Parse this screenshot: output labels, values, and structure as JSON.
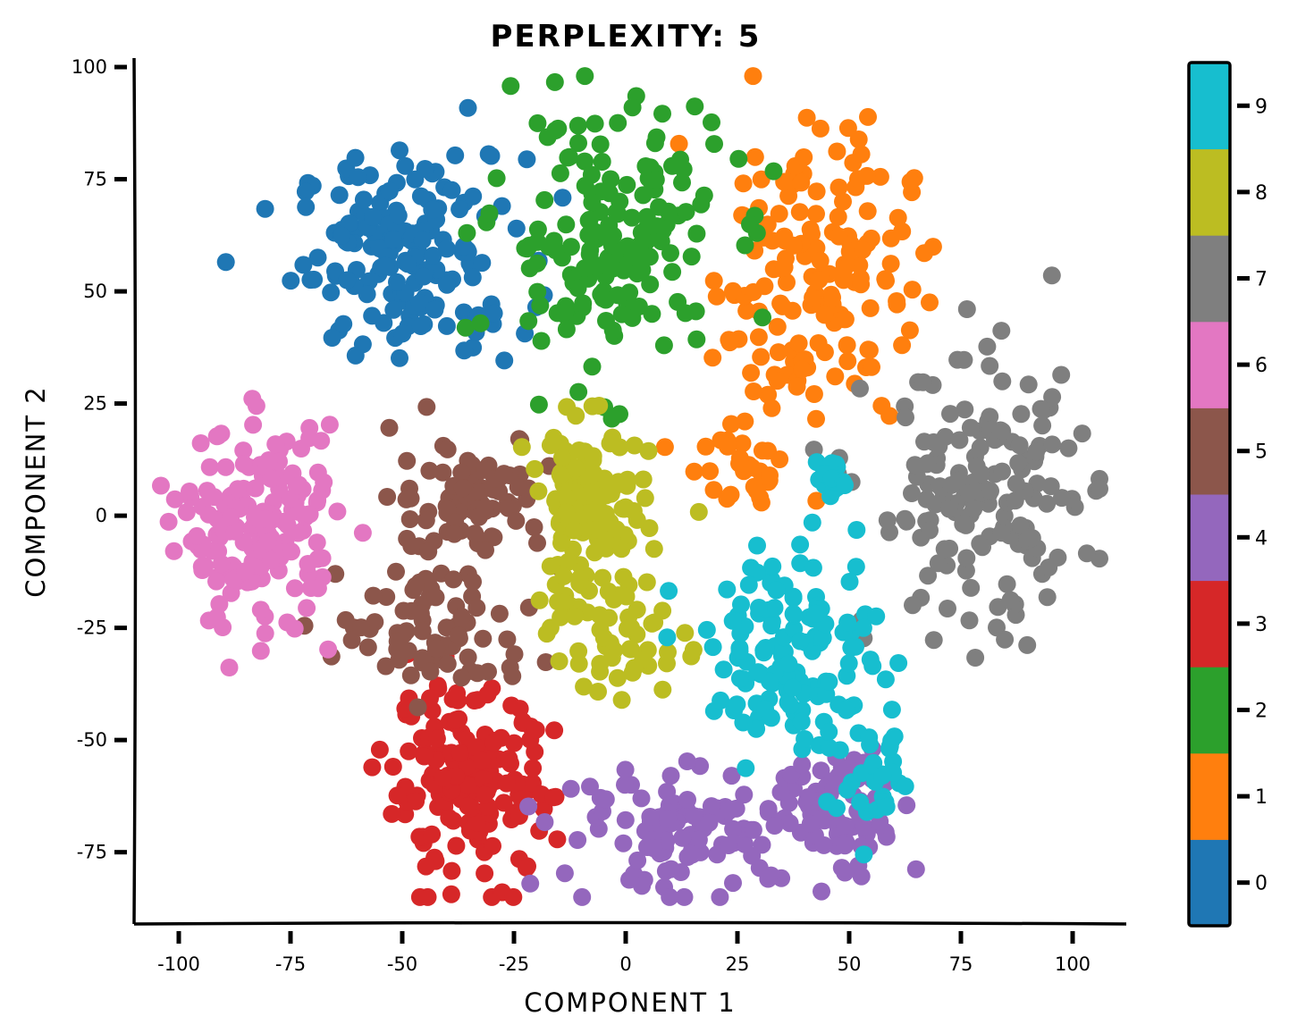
{
  "chart_data": {
    "type": "scatter",
    "title": "PERPLEXITY: 5",
    "xlabel": "COMPONENT 1",
    "ylabel": "COMPONENT 2",
    "xlim": [
      -110,
      112
    ],
    "ylim": [
      -91,
      102
    ],
    "xticks": [
      -100,
      -75,
      -50,
      -25,
      0,
      25,
      50,
      75,
      100
    ],
    "yticks": [
      -75,
      -50,
      -25,
      0,
      25,
      50,
      75,
      100
    ],
    "grid": false,
    "colorbar": {
      "ticks": [
        "0",
        "1",
        "2",
        "3",
        "4",
        "5",
        "6",
        "7",
        "8",
        "9"
      ],
      "colors": [
        "#1f77b4",
        "#ff7f0e",
        "#2ca02c",
        "#d62728",
        "#9467bd",
        "#8c564b",
        "#e377c2",
        "#7f7f7f",
        "#bcbd22",
        "#17becf"
      ]
    },
    "clusters": [
      {
        "label": "0",
        "center": [
          -48,
          58
        ],
        "spread": [
          15,
          13
        ],
        "count": 170
      },
      {
        "label": "1",
        "center": [
          42,
          55
        ],
        "spread": [
          13,
          20
        ],
        "count": 160
      },
      {
        "label": "1",
        "center": [
          25,
          10
        ],
        "spread": [
          8,
          7
        ],
        "count": 30
      },
      {
        "label": "2",
        "center": [
          -4,
          62
        ],
        "spread": [
          15,
          18
        ],
        "count": 175
      },
      {
        "label": "3",
        "center": [
          -35,
          -60
        ],
        "spread": [
          11,
          12
        ],
        "count": 170
      },
      {
        "label": "4",
        "center": [
          15,
          -70
        ],
        "spread": [
          18,
          8
        ],
        "count": 110
      },
      {
        "label": "4",
        "center": [
          50,
          -65
        ],
        "spread": [
          9,
          9
        ],
        "count": 70
      },
      {
        "label": "5",
        "center": [
          -35,
          5
        ],
        "spread": [
          10,
          8
        ],
        "count": 80
      },
      {
        "label": "5",
        "center": [
          -42,
          -25
        ],
        "spread": [
          13,
          9
        ],
        "count": 80
      },
      {
        "label": "6",
        "center": [
          -82,
          -3
        ],
        "spread": [
          10,
          13
        ],
        "count": 175
      },
      {
        "label": "7",
        "center": [
          80,
          3
        ],
        "spread": [
          15,
          18
        ],
        "count": 165
      },
      {
        "label": "8",
        "center": [
          -8,
          0
        ],
        "spread": [
          8,
          12
        ],
        "count": 130
      },
      {
        "label": "8",
        "center": [
          -2,
          -28
        ],
        "spread": [
          9,
          7
        ],
        "count": 45
      },
      {
        "label": "9",
        "center": [
          38,
          -30
        ],
        "spread": [
          11,
          13
        ],
        "count": 130
      },
      {
        "label": "9",
        "center": [
          55,
          -58
        ],
        "spread": [
          6,
          7
        ],
        "count": 35
      },
      {
        "label": "9",
        "center": [
          46,
          8
        ],
        "spread": [
          3,
          3
        ],
        "count": 18
      }
    ]
  }
}
